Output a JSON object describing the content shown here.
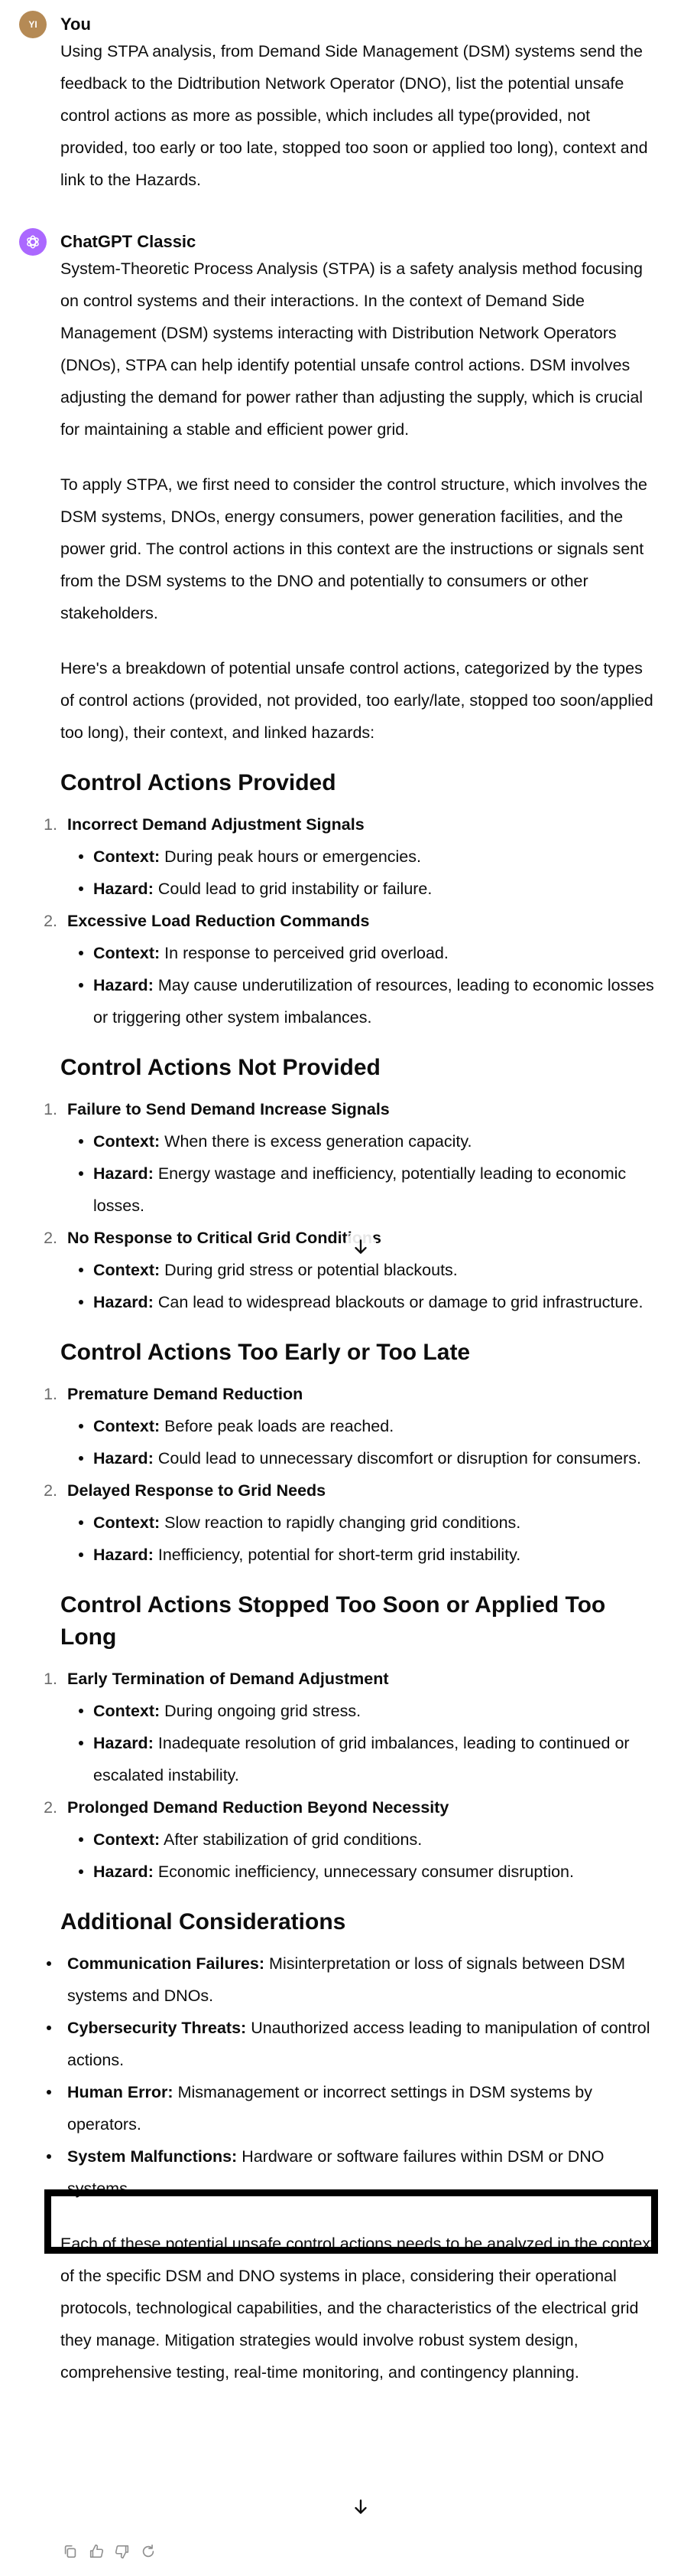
{
  "user_message": {
    "avatar_initials": "YI",
    "author": "You",
    "text": "Using STPA analysis, from Demand Side Management (DSM) systems send the feedback to the Didtribution Network Operator (DNO), list the potential unsafe control actions as more as possible, which includes all type(provided, not provided, too early or too late, stopped too soon or applied too long), context and link to the Hazards."
  },
  "assistant_message": {
    "author": "ChatGPT Classic",
    "intro_paragraphs": [
      "System-Theoretic Process Analysis (STPA) is a safety analysis method focusing on control systems and their interactions. In the context of Demand Side Management (DSM) systems interacting with Distribution Network Operators (DNOs), STPA can help identify potential unsafe control actions. DSM involves adjusting the demand for power rather than adjusting the supply, which is crucial for maintaining a stable and efficient power grid.",
      "To apply STPA, we first need to consider the control structure, which involves the DSM systems, DNOs, energy consumers, power generation facilities, and the power grid. The control actions in this context are the instructions or signals sent from the DSM systems to the DNO and potentially to consumers or other stakeholders.",
      "Here's a breakdown of potential unsafe control actions, categorized by the types of control actions (provided, not provided, too early/late, stopped too soon/applied too long), their context, and linked hazards:"
    ],
    "context_label": "Context:",
    "hazard_label": "Hazard:",
    "sections": [
      {
        "heading": "Control Actions Provided",
        "items": [
          {
            "num": "1.",
            "title": "Incorrect Demand Adjustment Signals",
            "context": "During peak hours or emergencies.",
            "hazard": "Could lead to grid instability or failure."
          },
          {
            "num": "2.",
            "title": "Excessive Load Reduction Commands",
            "context": "In response to perceived grid overload.",
            "hazard": "May cause underutilization of resources, leading to economic losses or triggering other system imbalances."
          }
        ]
      },
      {
        "heading": "Control Actions Not Provided",
        "items": [
          {
            "num": "1.",
            "title": "Failure to Send Demand Increase Signals",
            "context": "When there is excess generation capacity.",
            "hazard": "Energy wastage and inefficiency, potentially leading to economic losses."
          },
          {
            "num": "2.",
            "title": "No Response to Critical Grid Conditions",
            "context": "During grid stress or potential blackouts.",
            "hazard": "Can lead to widespread blackouts or damage to grid infrastructure."
          }
        ]
      },
      {
        "heading": "Control Actions Too Early or Too Late",
        "items": [
          {
            "num": "1.",
            "title": "Premature Demand Reduction",
            "context": "Before peak loads are reached.",
            "hazard": "Could lead to unnecessary discomfort or disruption for consumers."
          },
          {
            "num": "2.",
            "title": "Delayed Response to Grid Needs",
            "context": "Slow reaction to rapidly changing grid conditions.",
            "hazard": "Inefficiency, potential for short-term grid instability."
          }
        ]
      },
      {
        "heading": "Control Actions Stopped Too Soon or Applied Too Long",
        "items": [
          {
            "num": "1.",
            "title": "Early Termination of Demand Adjustment",
            "context": "During ongoing grid stress.",
            "hazard": "Inadequate resolution of grid imbalances, leading to continued or escalated instability."
          },
          {
            "num": "2.",
            "title": "Prolonged Demand Reduction Beyond Necessity",
            "context": "After stabilization of grid conditions.",
            "hazard": "Economic inefficiency, unnecessary consumer disruption."
          }
        ]
      }
    ],
    "additional": {
      "heading": "Additional Considerations",
      "items": [
        {
          "label": "Communication Failures:",
          "text": "Misinterpretation or loss of signals between DSM systems and DNOs."
        },
        {
          "label": "Cybersecurity Threats:",
          "text": "Unauthorized access leading to manipulation of control actions."
        },
        {
          "label": "Human Error:",
          "text": "Mismanagement or incorrect settings in DSM systems by operators."
        },
        {
          "label": "System Malfunctions:",
          "text": "Hardware or software failures within DSM or DNO systems."
        }
      ]
    },
    "closing": "Each of these potential unsafe control actions needs to be analyzed in the context of the specific DSM and DNO systems in place, considering their operational protocols, technological capabilities, and the characteristics of the electrical grid they manage. Mitigation strategies would involve robust system design, comprehensive testing, real-time monitoring, and contingency planning."
  },
  "icons": {
    "scroll": "arrow-down-icon",
    "actions": [
      "copy-icon",
      "thumbs-up-icon",
      "thumbs-down-icon",
      "regenerate-icon"
    ]
  },
  "colors": {
    "text": "#0d0d0d",
    "list_number": "#6b6b6b",
    "user_avatar": "#b58a55",
    "assistant_avatar": "#ab68ff",
    "highlight_border": "#000000"
  }
}
